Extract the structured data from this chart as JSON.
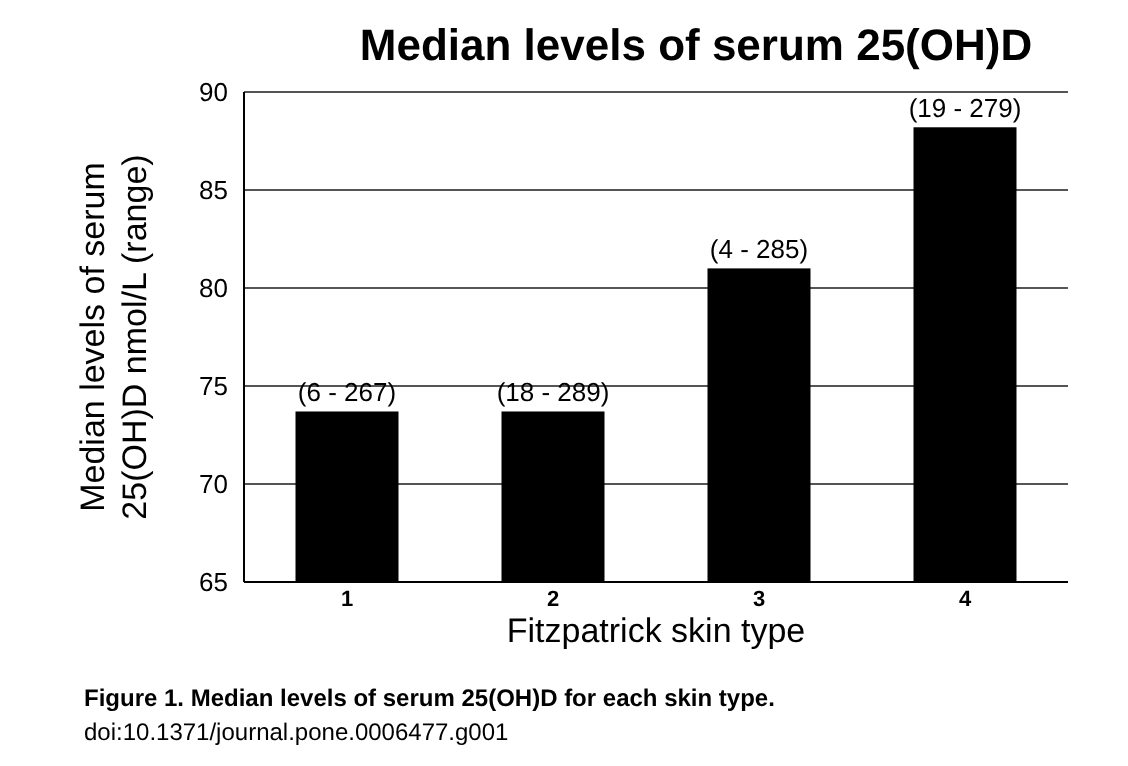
{
  "chart_data": {
    "type": "bar",
    "title": "Median levels of serum 25(OH)D",
    "xlabel": "Fitzpatrick skin type",
    "ylabel": "Median levels of serum 25(OH)D nmol/L (range)",
    "categories": [
      "1",
      "2",
      "3",
      "4"
    ],
    "values": [
      73.7,
      73.7,
      81.0,
      88.2
    ],
    "value_labels": [
      "(6 - 267)",
      "(18 - 289)",
      "(4 - 285)",
      "(19 - 279)"
    ],
    "color": "#000000",
    "ylim": [
      65,
      90
    ],
    "yticks": [
      65,
      70,
      75,
      80,
      85,
      90
    ],
    "grid": "y",
    "annotations": [
      "Figure 1. Median levels of serum 25(OH)D for each skin type.",
      "doi:10.1371/journal.pone.0006477.g001"
    ]
  }
}
